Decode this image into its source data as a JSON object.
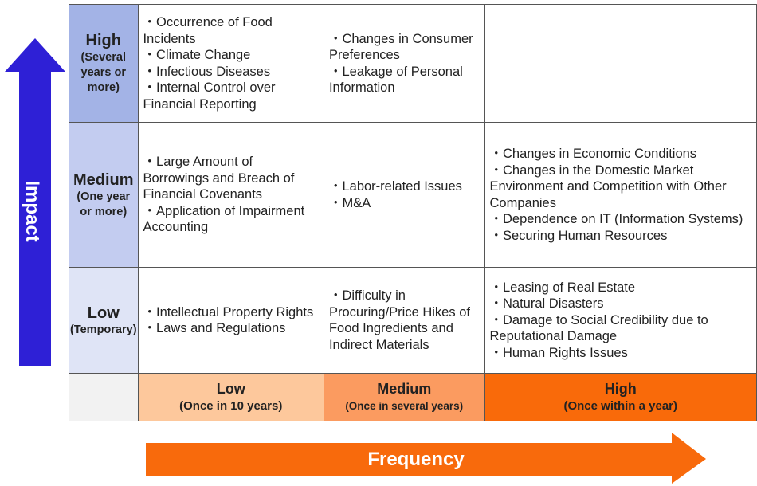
{
  "y_axis_label": "Impact",
  "x_axis_label": "Frequency",
  "matrix": {
    "rows": [
      {
        "level": "High",
        "note": "(Several years or more)",
        "cells": [
          [
            "・Occurrence of Food Incidents",
            "・Climate Change",
            "・Infectious Diseases",
            "・Internal Control over Financial Reporting"
          ],
          [
            "・Changes in Consumer Preferences",
            "・Leakage of Personal Information"
          ],
          []
        ]
      },
      {
        "level": "Medium",
        "note": "(One year or more)",
        "cells": [
          [
            "・Large Amount of Borrowings and Breach of Financial Covenants",
            "・Application of Impairment Accounting"
          ],
          [
            "・Labor-related Issues",
            "・M&A"
          ],
          [
            "・Changes in Economic Conditions",
            "・Changes in the Domestic Market Environment and Competition with Other Companies",
            "・Dependence on IT (Information Systems)",
            "・Securing Human Resources"
          ]
        ]
      },
      {
        "level": "Low",
        "note": "(Temporary)",
        "cells": [
          [
            "・Intellectual Property Rights",
            "・Laws and Regulations"
          ],
          [
            "・Difficulty in Procuring/Price Hikes of Food Ingredients and Indirect Materials"
          ],
          [
            "・Leasing of Real Estate",
            "・Natural Disasters",
            "・Damage to Social Credibility due to Reputational Damage",
            "・Human Rights Issues"
          ]
        ]
      }
    ],
    "columns": [
      {
        "level": "Low",
        "note": "(Once in 10 years)"
      },
      {
        "level": "Medium",
        "note": "(Once in several years)"
      },
      {
        "level": "High",
        "note": "(Once within a year)"
      }
    ]
  }
}
